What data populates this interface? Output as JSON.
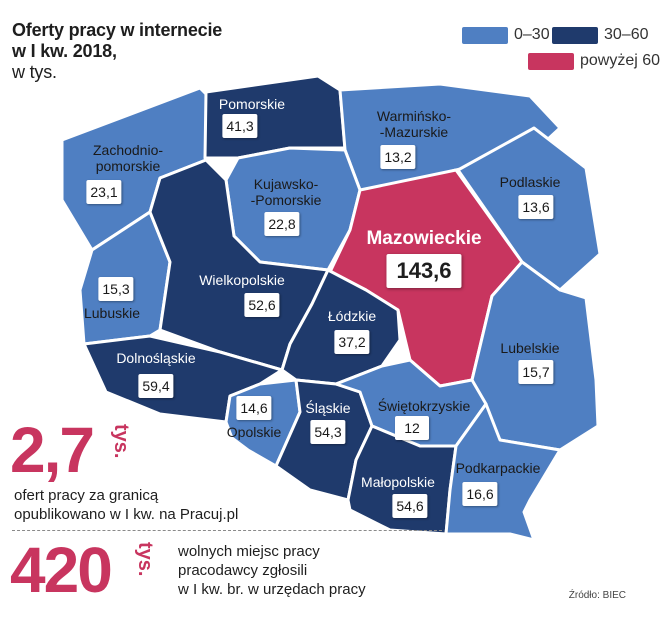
{
  "title": {
    "line1": "Oferty pracy w internecie",
    "line2": "w I kw. 2018,",
    "line3": "w tys."
  },
  "legend": [
    {
      "label": "0–30",
      "color": "#4f7fc2"
    },
    {
      "label": "30–60",
      "color": "#1f3a6c"
    },
    {
      "label": "powyżej 60",
      "color": "#c8355f"
    }
  ],
  "regions": {
    "pomorskie": {
      "name": "Pomorskie",
      "value": "41,3"
    },
    "zachodniopomorskie": {
      "name_line1": "Zachodnio-",
      "name_line2": "pomorskie",
      "value": "23,1"
    },
    "warminsko_mazurskie": {
      "name_line1": "Warmińsko-",
      "name_line2": "-Mazurskie",
      "value": "13,2"
    },
    "podlaskie": {
      "name": "Podlaskie",
      "value": "13,6"
    },
    "kujawsko_pomorskie": {
      "name_line1": "Kujawsko-",
      "name_line2": "-Pomorskie",
      "value": "22,8"
    },
    "mazowieckie": {
      "name": "Mazowieckie",
      "value": "143,6"
    },
    "lubuskie": {
      "name": "Lubuskie",
      "value": "15,3"
    },
    "wielkopolskie": {
      "name": "Wielkopolskie",
      "value": "52,6"
    },
    "lodzkie": {
      "name": "Łódzkie",
      "value": "37,2"
    },
    "lubelskie": {
      "name": "Lubelskie",
      "value": "15,7"
    },
    "dolnoslaskie": {
      "name": "Dolnośląskie",
      "value": "59,4"
    },
    "opolskie": {
      "name": "Opolskie",
      "value": "14,6"
    },
    "slaskie": {
      "name": "Śląskie",
      "value": "54,3"
    },
    "swietokrzyskie": {
      "name": "Świętokrzyskie",
      "value": "12"
    },
    "malopolskie": {
      "name": "Małopolskie",
      "value": "54,6"
    },
    "podkarpackie": {
      "name": "Podkarpackie",
      "value": "16,6"
    }
  },
  "stats": [
    {
      "number": "2,7",
      "unit": "tys.",
      "desc_line1": "ofert pracy za granicą",
      "desc_line2": "opublikowano w I kw. na Pracuj.pl"
    },
    {
      "number": "420",
      "unit": "tys.",
      "desc_line1": "wolnych miejsc pracy",
      "desc_line2": "pracodawcy zgłosili",
      "desc_line3": "w I kw. br. w urzędach pracy"
    }
  ],
  "source": "Źródło: BIEC",
  "colors": {
    "light": "#4f7fc2",
    "dark": "#1f3a6c",
    "accent": "#c8355f"
  }
}
